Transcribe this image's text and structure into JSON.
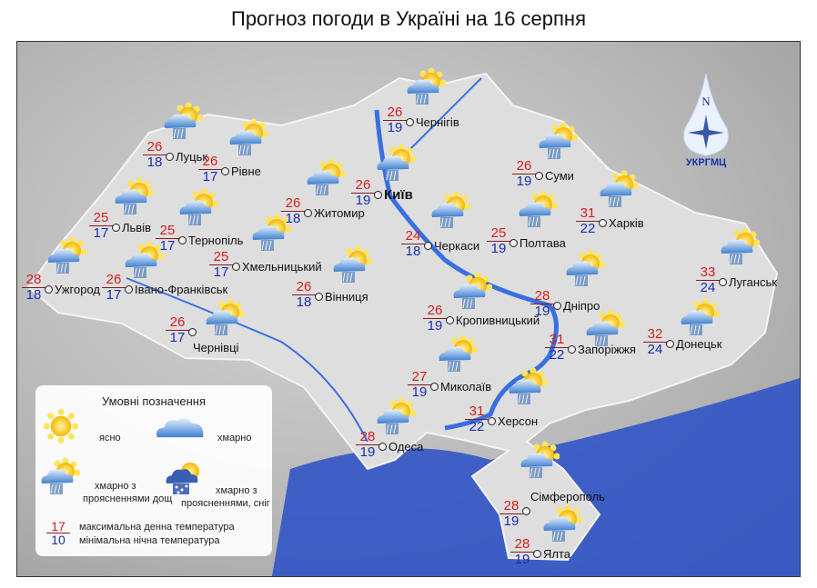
{
  "title": "Прогноз погоди в Україні на 16 серпня",
  "logo": {
    "text": "УКРГМЦ",
    "compass_letter": "N"
  },
  "colors": {
    "day_temp": "#d2201e",
    "night_temp": "#1a2fb0",
    "sea": "#2a4fc8",
    "river": "#3a6fe0"
  },
  "cities": [
    {
      "name": "Луцьк",
      "day": "26",
      "night": "18",
      "icon": "partly-cloudy-rain"
    },
    {
      "name": "Рівне",
      "day": "26",
      "night": "17",
      "icon": "partly-cloudy-rain"
    },
    {
      "name": "Львів",
      "day": "25",
      "night": "17",
      "icon": "partly-cloudy-rain"
    },
    {
      "name": "Тернопіль",
      "day": "25",
      "night": "17",
      "icon": "partly-cloudy-rain"
    },
    {
      "name": "Хмельницький",
      "day": "25",
      "night": "17",
      "icon": "partly-cloudy-rain"
    },
    {
      "name": "Ужгород",
      "day": "28",
      "night": "18",
      "icon": "partly-cloudy-rain"
    },
    {
      "name": "Івано-Франківськ",
      "day": "26",
      "night": "17",
      "icon": "partly-cloudy-rain"
    },
    {
      "name": "Чернівці",
      "day": "26",
      "night": "17",
      "icon": "partly-cloudy-rain"
    },
    {
      "name": "Житомир",
      "day": "26",
      "night": "18",
      "icon": "partly-cloudy-rain"
    },
    {
      "name": "Київ",
      "day": "26",
      "night": "19",
      "icon": "partly-cloudy-rain"
    },
    {
      "name": "Чернігів",
      "day": "26",
      "night": "19",
      "icon": "partly-cloudy-rain"
    },
    {
      "name": "Суми",
      "day": "26",
      "night": "19",
      "icon": "partly-cloudy-rain"
    },
    {
      "name": "Харків",
      "day": "31",
      "night": "22",
      "icon": "partly-cloudy-rain"
    },
    {
      "name": "Полтава",
      "day": "25",
      "night": "19",
      "icon": "partly-cloudy-rain"
    },
    {
      "name": "Черкаси",
      "day": "24",
      "night": "18",
      "icon": "partly-cloudy-rain"
    },
    {
      "name": "Вінниця",
      "day": "26",
      "night": "18",
      "icon": "partly-cloudy-rain"
    },
    {
      "name": "Кропивницький",
      "day": "26",
      "night": "19",
      "icon": "partly-cloudy-rain"
    },
    {
      "name": "Дніпро",
      "day": "28",
      "night": "19",
      "icon": "partly-cloudy-rain"
    },
    {
      "name": "Луганськ",
      "day": "33",
      "night": "24",
      "icon": "partly-cloudy-rain"
    },
    {
      "name": "Донецьк",
      "day": "32",
      "night": "24",
      "icon": "partly-cloudy-rain"
    },
    {
      "name": "Запоріжжя",
      "day": "31",
      "night": "22",
      "icon": "partly-cloudy-rain"
    },
    {
      "name": "Миколаїв",
      "day": "27",
      "night": "19",
      "icon": "partly-cloudy-rain"
    },
    {
      "name": "Херсон",
      "day": "31",
      "night": "22",
      "icon": "partly-cloudy-rain"
    },
    {
      "name": "Одеса",
      "day": "28",
      "night": "19",
      "icon": "partly-cloudy-rain"
    },
    {
      "name": "Сімферополь",
      "day": "28",
      "night": "19",
      "icon": "partly-cloudy-rain"
    },
    {
      "name": "Ялта",
      "day": "28",
      "night": "19",
      "icon": "partly-cloudy-rain"
    }
  ],
  "legend": {
    "title": "Умовні позначення",
    "clear": "ясно",
    "cloudy": "хмарно",
    "rain_l1": "хмарно з",
    "rain_l2": "проясненнями дощ",
    "snow_l1": "хмарно з",
    "snow_l2": "проясненнями, сніг",
    "sample_day": "17",
    "sample_night": "10",
    "max_label": "максимальна денна температура",
    "min_label": "мінімальна нічна температура"
  }
}
